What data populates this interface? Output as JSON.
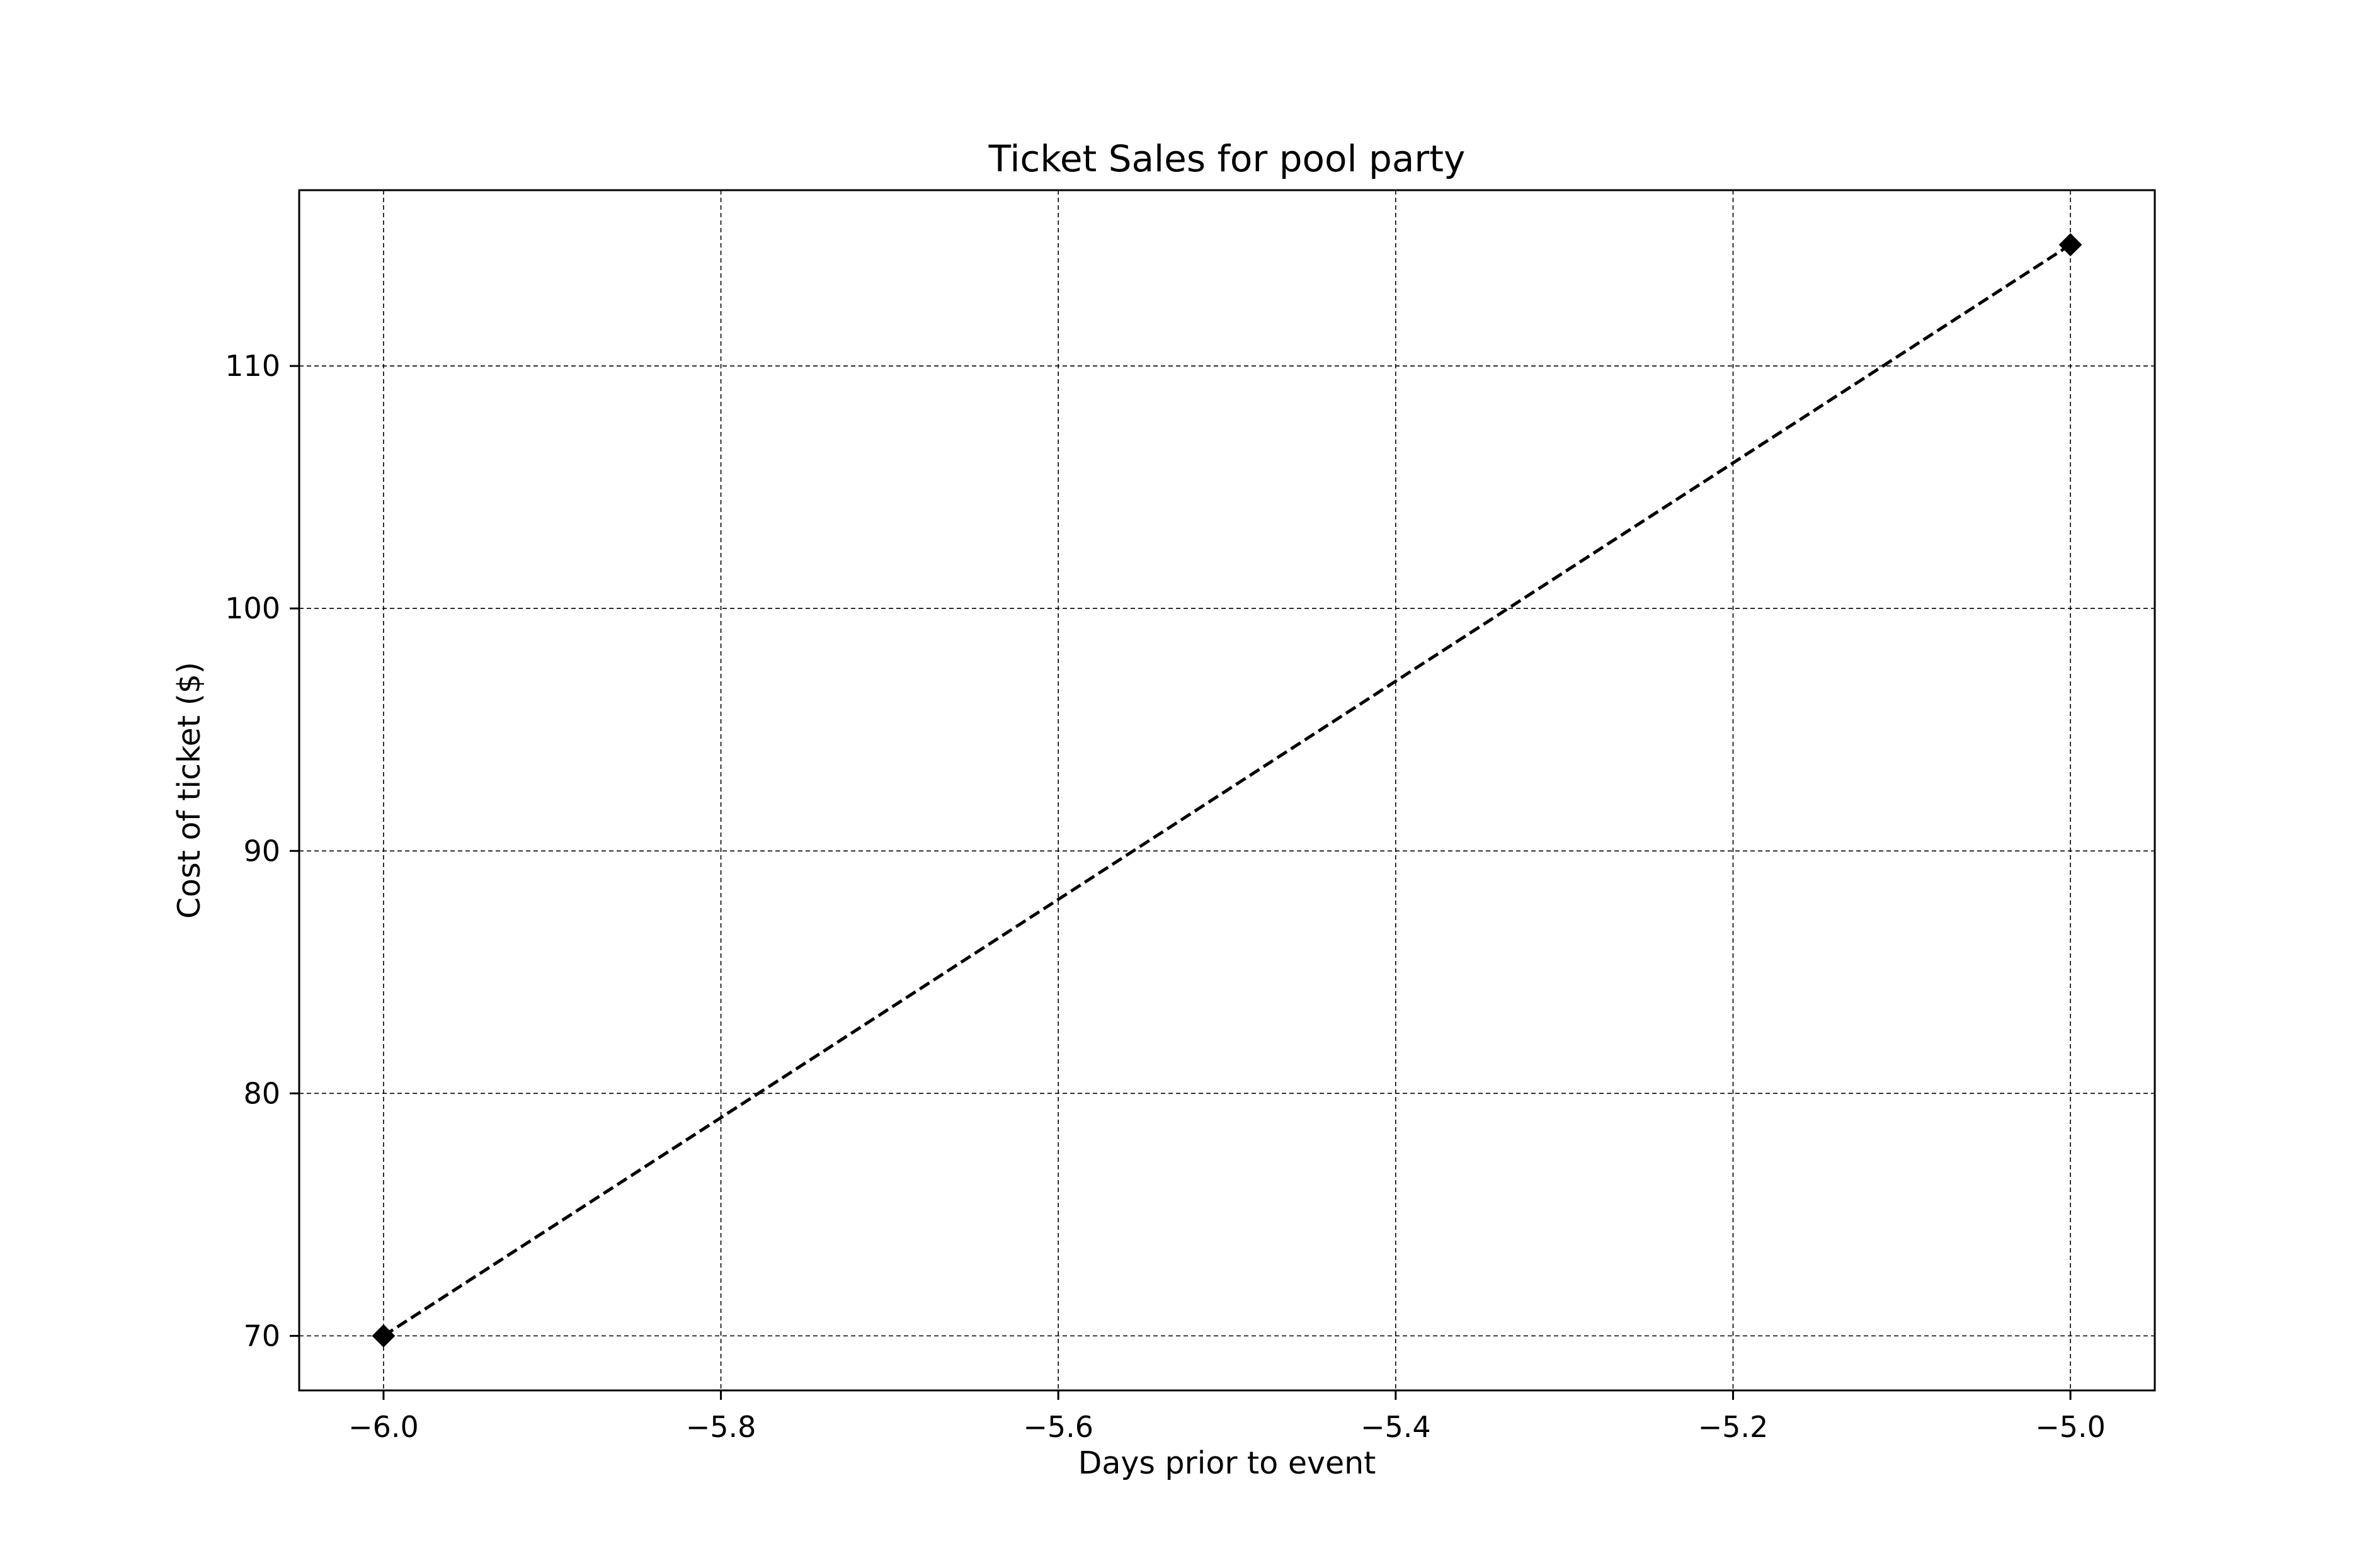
{
  "chart_data": {
    "type": "line",
    "title": "Ticket Sales for pool party",
    "xlabel": "Days prior to event",
    "ylabel": "Cost of ticket ($)",
    "xlim": [
      -6.05,
      -4.95
    ],
    "ylim": [
      67.75,
      117.25
    ],
    "x_ticks": [
      -6.0,
      -5.8,
      -5.6,
      -5.4,
      -5.2,
      -5.0
    ],
    "x_tick_labels": [
      "−6.0",
      "−5.8",
      "−5.6",
      "−5.4",
      "−5.2",
      "−5.0"
    ],
    "y_ticks": [
      70,
      80,
      90,
      100,
      110
    ],
    "y_tick_labels": [
      "70",
      "80",
      "90",
      "100",
      "110"
    ],
    "grid": true,
    "series": [
      {
        "x": [
          -6.0,
          -5.0
        ],
        "y": [
          70,
          115
        ],
        "color": "#000000",
        "line_style": "dashed",
        "marker": "diamond"
      }
    ]
  }
}
